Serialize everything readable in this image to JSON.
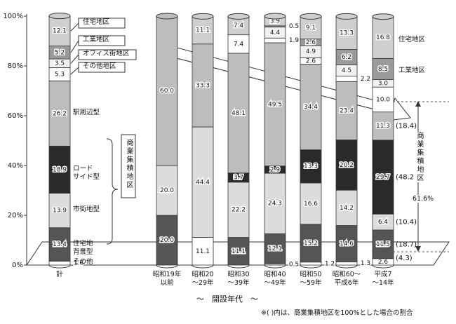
{
  "chart_data": {
    "type": "stacked-bar",
    "categories": [
      "計",
      "昭和19年\n以前",
      "昭和20\n～29年",
      "昭和30\n～39年",
      "昭和40\n～49年",
      "昭和50\n～59年",
      "昭和60～\n平成6年",
      "平成7\n～14年"
    ],
    "ylim": [
      0,
      100
    ],
    "yticks": [
      {
        "value": 0,
        "label": "0%"
      },
      {
        "value": 20,
        "label": "20%"
      },
      {
        "value": 40,
        "label": "40%"
      },
      {
        "value": 60,
        "label": "60%"
      },
      {
        "value": 80,
        "label": "80%"
      },
      {
        "value": 100,
        "label": "100%"
      }
    ],
    "x_label": "～　開設年代　～",
    "series": [
      {
        "name": "その他",
        "color": "#ffffff",
        "values": [
          1.6,
          0,
          11.1,
          0,
          0.5,
          1.2,
          1.3,
          2.6
        ],
        "value_labels": [
          "1.6",
          null,
          "11.1",
          null,
          "0.5",
          "1.2",
          "1.3",
          "2.6"
        ]
      },
      {
        "name": "住宅地\n背景型",
        "color": "#555555",
        "values": [
          13.4,
          20.0,
          0,
          11.1,
          12.1,
          15.2,
          14.6,
          11.5
        ],
        "value_labels": [
          "13.4",
          "20.0",
          null,
          "11.1",
          "12.1",
          "15.2",
          "14.6",
          "11.5"
        ]
      },
      {
        "name": "市街地型",
        "color": "#dcdcdc",
        "values": [
          13.9,
          20.0,
          44.4,
          22.2,
          24.3,
          16.6,
          14.2,
          6.4
        ],
        "value_labels": [
          "13.9",
          "20.0",
          "44.4",
          "22.2",
          "24.3",
          "16.6",
          "14.2",
          "6.4"
        ]
      },
      {
        "name": "ロード\nサイド型",
        "color": "#2a2a2a",
        "values": [
          18.9,
          0,
          0,
          3.7,
          2.9,
          13.3,
          20.2,
          29.7
        ],
        "value_labels": [
          "18.9",
          null,
          null,
          "3.7",
          "2.9",
          "13.3",
          "20.2",
          "29.7"
        ]
      },
      {
        "name": "駅周辺型",
        "color": "#bdbdbd",
        "values": [
          26.2,
          60.0,
          33.3,
          48.1,
          49.5,
          34.4,
          23.4,
          11.3
        ],
        "value_labels": [
          "26.2",
          "60.0",
          "33.3",
          "48.1",
          "49.5",
          "34.4",
          "23.4",
          "11.3"
        ]
      },
      {
        "name": "その他地区",
        "color": "#ffffff",
        "values": [
          5.3,
          0,
          0,
          7.4,
          1.9,
          2.6,
          2.2,
          10.0
        ],
        "value_labels": [
          "5.3",
          null,
          null,
          "7.4",
          "1.9",
          "2.6",
          "2.2",
          "10.0"
        ]
      },
      {
        "name": "オフィス街地区",
        "color": "#f0f0f0",
        "values": [
          3.5,
          0,
          0,
          0,
          4.4,
          4.9,
          4.5,
          3.0
        ],
        "value_labels": [
          "3.5",
          null,
          null,
          null,
          "4.4",
          "4.9",
          "4.5",
          "3.0"
        ]
      },
      {
        "name": "工業地区",
        "color": "#9a9a9a",
        "values": [
          5.2,
          0,
          0,
          0,
          0.5,
          2.6,
          6.2,
          8.5
        ],
        "value_labels": [
          "5.2",
          null,
          null,
          null,
          "0.5",
          "2.6",
          "6.2",
          "8.5"
        ]
      },
      {
        "name": "住宅地区",
        "color": "#cfcfcf",
        "values": [
          12.1,
          0,
          11.1,
          7.4,
          3.9,
          9.1,
          13.3,
          16.8
        ],
        "value_labels": [
          "12.1",
          null,
          "11.1",
          "7.4",
          "3.9",
          "9.1",
          "13.3",
          "16.8"
        ]
      }
    ],
    "commercial_label": "商業集積地区",
    "commercial_share": {
      "values": [
        4.3,
        18.7,
        10.4,
        48.2,
        18.4
      ],
      "value_labels": [
        "(4.3)",
        "(18.7)",
        "(10.4)",
        "(48.2)",
        "(18.4)"
      ]
    },
    "commercial_total": {
      "value": 61.6,
      "label": "61.6%"
    },
    "note": "※(  )内は、商業集積地区を100%とした場合の割合"
  }
}
